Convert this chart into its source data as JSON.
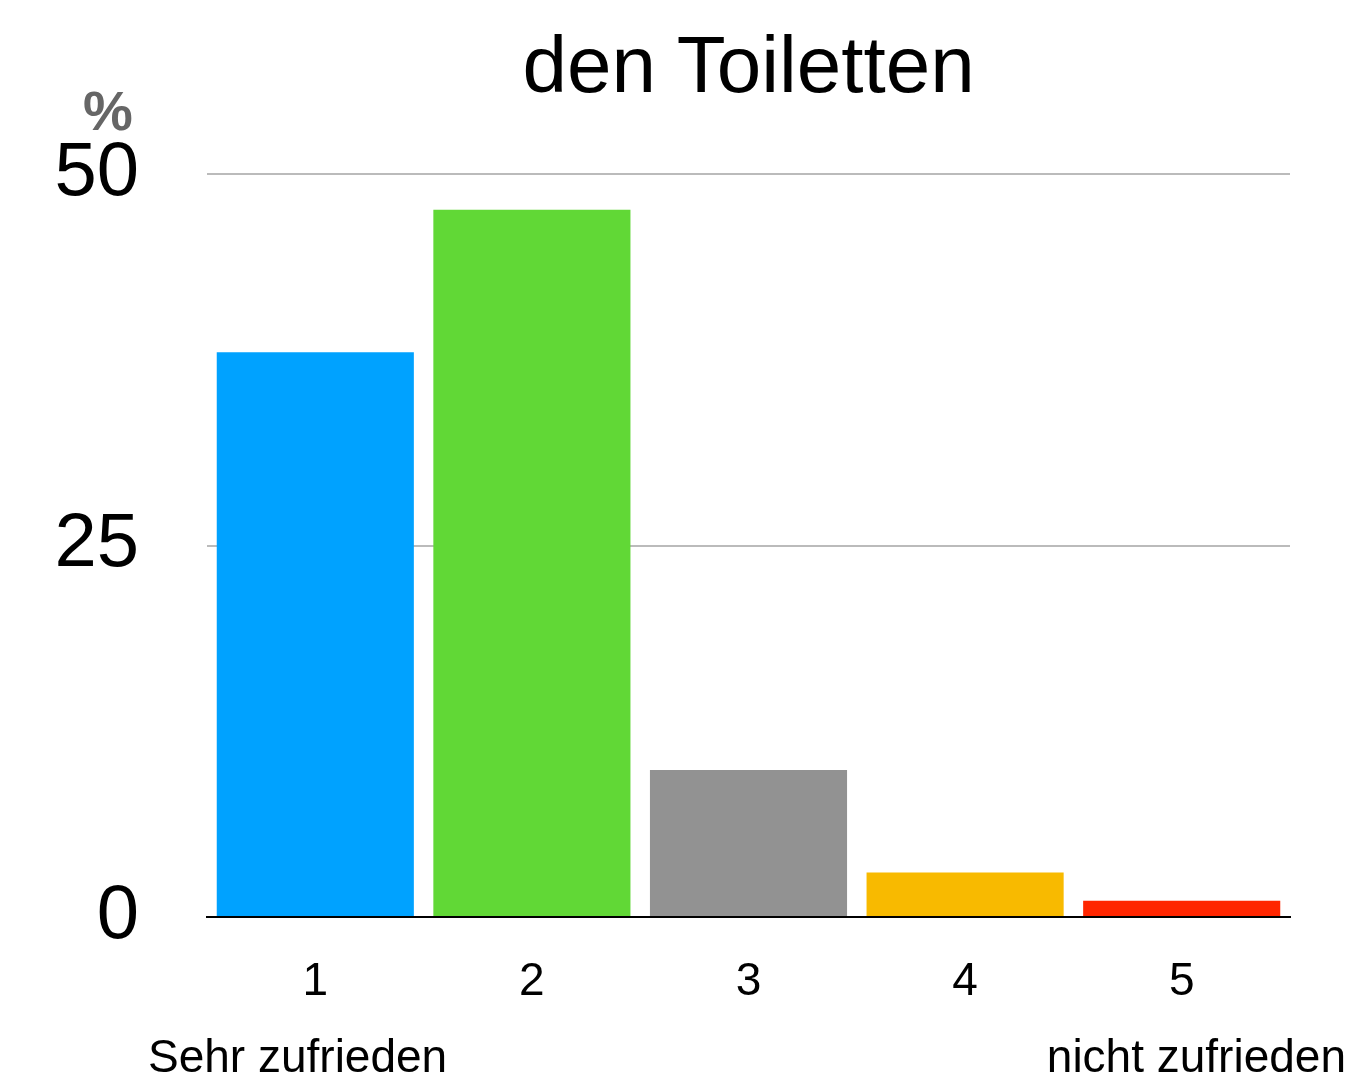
{
  "chart_data": {
    "type": "bar",
    "title": "den Toiletten",
    "ylabel": "%",
    "categories": [
      "1",
      "2",
      "3",
      "4",
      "5"
    ],
    "values": [
      38,
      47.6,
      9.9,
      3,
      1.1
    ],
    "colors": [
      "#00a2ff",
      "#61d836",
      "#929292",
      "#f8ba00",
      "#ff2600"
    ],
    "ylim": [
      0,
      50
    ],
    "yticks": [
      0,
      25,
      50
    ],
    "grid": "y",
    "legend": false,
    "annotations": [
      "Sehr zufrieden",
      "nicht zufrieden"
    ]
  }
}
